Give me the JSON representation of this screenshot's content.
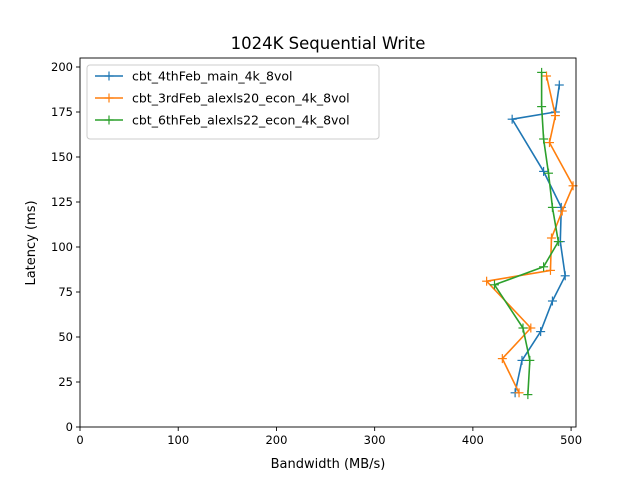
{
  "chart_data": {
    "type": "line",
    "title": "1024K  Sequential Write",
    "xlabel": "Bandwidth (MB/s)",
    "ylabel": "Latency (ms)",
    "xlim": [
      0,
      505
    ],
    "ylim": [
      0,
      205
    ],
    "xticks": [
      0,
      100,
      200,
      300,
      400,
      500
    ],
    "yticks": [
      0,
      25,
      50,
      75,
      100,
      125,
      150,
      175,
      200
    ],
    "grid": false,
    "legend_position": "upper-left",
    "marker": "plus",
    "series": [
      {
        "name": "cbt_4thFeb_main_4k_8vol",
        "color": "#1f77b4",
        "points": [
          [
            443,
            19
          ],
          [
            450,
            37
          ],
          [
            469,
            53
          ],
          [
            481,
            70
          ],
          [
            494,
            84
          ],
          [
            489,
            103
          ],
          [
            490,
            122
          ],
          [
            472,
            142
          ],
          [
            440,
            171
          ],
          [
            484,
            175
          ],
          [
            488,
            190
          ]
        ]
      },
      {
        "name": "cbt_3rdFeb_alexls20_econ_4k_8vol",
        "color": "#ff7f0e",
        "points": [
          [
            447,
            19
          ],
          [
            430,
            38
          ],
          [
            459,
            55
          ],
          [
            414,
            81
          ],
          [
            479,
            87
          ],
          [
            480,
            105
          ],
          [
            491,
            120
          ],
          [
            502,
            134
          ],
          [
            478,
            158
          ],
          [
            484,
            173
          ],
          [
            475,
            195
          ]
        ]
      },
      {
        "name": "cbt_6thFeb_alexls22_econ_4k_8vol",
        "color": "#2ca02c",
        "points": [
          [
            456,
            18
          ],
          [
            458,
            37
          ],
          [
            451,
            55
          ],
          [
            422,
            79
          ],
          [
            472,
            89
          ],
          [
            487,
            103
          ],
          [
            481,
            122
          ],
          [
            477,
            141
          ],
          [
            472,
            160
          ],
          [
            470,
            178
          ],
          [
            470,
            197
          ]
        ]
      }
    ]
  }
}
